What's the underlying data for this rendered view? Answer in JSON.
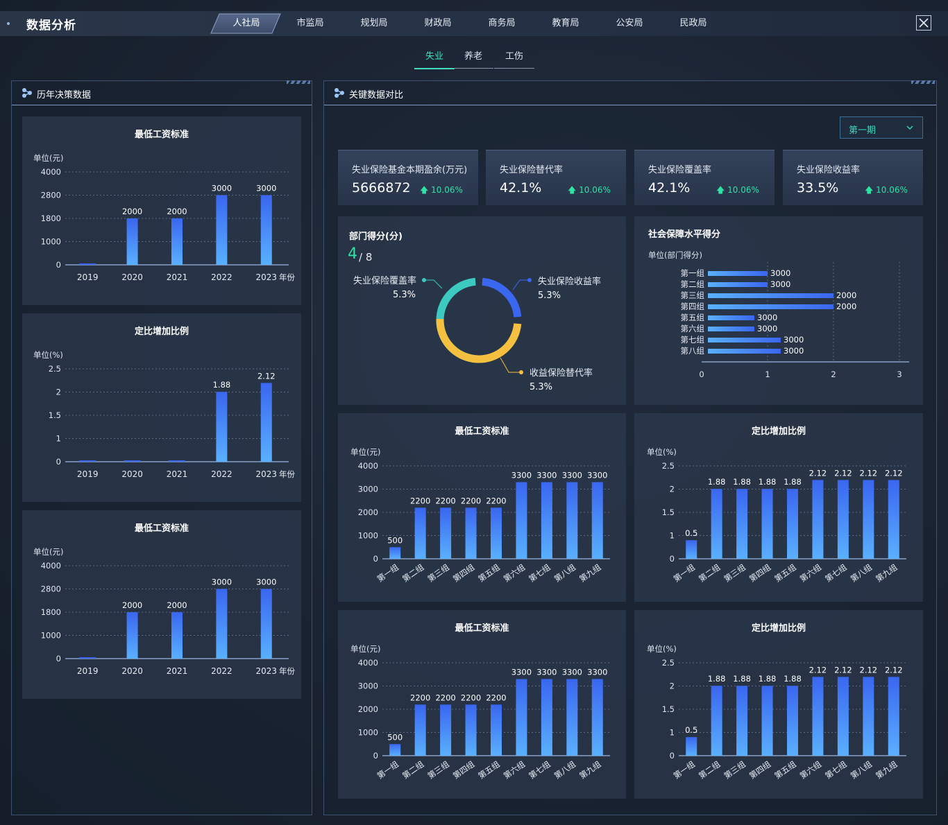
{
  "app": {
    "title": "数据分析"
  },
  "nav": {
    "tabs": [
      "人社局",
      "市监局",
      "规划局",
      "财政局",
      "商务局",
      "教育局",
      "公安局",
      "民政局"
    ],
    "active": 0
  },
  "subtabs": {
    "items": [
      "失业",
      "养老",
      "工伤"
    ],
    "active": 0
  },
  "left_panel": {
    "title": "历年决策数据"
  },
  "right_panel": {
    "title": "关键数据对比"
  },
  "period_select": {
    "value": "第一期"
  },
  "kpis": [
    {
      "label": "失业保险基金本期盈余(万元)",
      "value": "5666872",
      "change": "10.06%"
    },
    {
      "label": "失业保险替代率",
      "value": "42.1%",
      "change": "10.06%"
    },
    {
      "label": "失业保险覆盖率",
      "value": "42.1%",
      "change": "10.06%"
    },
    {
      "label": "失业保险收益率",
      "value": "33.5%",
      "change": "10.06%"
    }
  ],
  "dept_score": {
    "title": "部门得分(分)",
    "score": "4",
    "total": "/ 8"
  },
  "colors": {
    "accent": "#37d9bf",
    "up": "#2fe3a6",
    "bar_top": "#3a66f0",
    "bar_bottom": "#5ab0ff",
    "donut_teal": "#3cc9c0",
    "donut_blue": "#3a66f0",
    "donut_yellow": "#f5c040"
  },
  "chart_data": [
    {
      "type": "bar",
      "title": "最低工资标准",
      "ylabel": "单位(元)",
      "xlabel": "年份",
      "categories": [
        "2019",
        "2020",
        "2021",
        "2022",
        "2023"
      ],
      "values": [
        0,
        2000,
        2000,
        3000,
        3000
      ],
      "yticks": [
        "0",
        "1000",
        "1800",
        "2800",
        "4000"
      ],
      "ylim": [
        0,
        4000
      ]
    },
    {
      "type": "bar",
      "title": "定比增加比例",
      "ylabel": "单位(%)",
      "xlabel": "年份",
      "categories": [
        "2019",
        "2020",
        "2021",
        "2022",
        "2023"
      ],
      "values": [
        0,
        0,
        0,
        1.88,
        2.12
      ],
      "yticks": [
        "0",
        "1",
        "1.5",
        "2",
        "2.5"
      ],
      "ylim": [
        0,
        2.5
      ]
    },
    {
      "type": "bar",
      "title": "最低工资标准",
      "ylabel": "单位(元)",
      "xlabel": "年份",
      "categories": [
        "2019",
        "2020",
        "2021",
        "2022",
        "2023"
      ],
      "values": [
        0,
        2000,
        2000,
        3000,
        3000
      ],
      "yticks": [
        "0",
        "1000",
        "1800",
        "2800",
        "4000"
      ],
      "ylim": [
        0,
        4000
      ]
    },
    {
      "type": "pie",
      "title": "",
      "slices": [
        {
          "name": "失业保险覆盖率",
          "label": "5.3%",
          "value": 1
        },
        {
          "name": "失业保险收益率",
          "label": "5.3%",
          "value": 1
        },
        {
          "name": "收益保险替代率",
          "label": "5.3%",
          "value": 1
        }
      ]
    },
    {
      "type": "bar",
      "orientation": "horizontal",
      "title": "社会保障水平得分",
      "ylabel": "单位(部门得分)",
      "categories": [
        "第一组",
        "第二组",
        "第三组",
        "第四组",
        "第五组",
        "第六组",
        "第七组",
        "第八组"
      ],
      "values": [
        1,
        1,
        2,
        2,
        0.8,
        0.8,
        1.2,
        1.2
      ],
      "labels": [
        "3000",
        "3000",
        "2000",
        "2000",
        "3000",
        "3000",
        "3000",
        "3000"
      ],
      "xticks": [
        "0",
        "1",
        "2",
        "3"
      ],
      "xlim": [
        0,
        3
      ]
    },
    {
      "type": "bar",
      "title": "最低工资标准",
      "ylabel": "单位(元)",
      "categories": [
        "第一组",
        "第二组",
        "第三组",
        "第四组",
        "第五组",
        "第六组",
        "第七组",
        "第八组",
        "第九组"
      ],
      "values": [
        500,
        2200,
        2200,
        2200,
        2200,
        3300,
        3300,
        3300,
        3300
      ],
      "yticks": [
        "0",
        "1000",
        "2000",
        "3000",
        "4000"
      ],
      "ylim": [
        0,
        4000
      ]
    },
    {
      "type": "bar",
      "title": "定比增加比例",
      "ylabel": "单位(%)",
      "categories": [
        "第一组",
        "第二组",
        "第三组",
        "第四组",
        "第五组",
        "第六组",
        "第七组",
        "第八组",
        "第九组"
      ],
      "values": [
        0.5,
        1.88,
        1.88,
        1.88,
        1.88,
        2.12,
        2.12,
        2.12,
        2.12
      ],
      "yticks": [
        "0",
        "1",
        "1.5",
        "2",
        "2.5"
      ],
      "ylim": [
        0,
        2.5
      ]
    },
    {
      "type": "bar",
      "title": "最低工资标准",
      "ylabel": "单位(元)",
      "categories": [
        "第一组",
        "第二组",
        "第三组",
        "第四组",
        "第五组",
        "第六组",
        "第七组",
        "第八组",
        "第九组"
      ],
      "values": [
        500,
        2200,
        2200,
        2200,
        2200,
        3300,
        3300,
        3300,
        3300
      ],
      "yticks": [
        "0",
        "1000",
        "2000",
        "3000",
        "4000"
      ],
      "ylim": [
        0,
        4000
      ]
    },
    {
      "type": "bar",
      "title": "定比增加比例",
      "ylabel": "单位(%)",
      "categories": [
        "第一组",
        "第二组",
        "第三组",
        "第四组",
        "第五组",
        "第六组",
        "第七组",
        "第八组",
        "第九组"
      ],
      "values": [
        0.5,
        1.88,
        1.88,
        1.88,
        1.88,
        2.12,
        2.12,
        2.12,
        2.12
      ],
      "yticks": [
        "0",
        "1",
        "1.5",
        "2",
        "2.5"
      ],
      "ylim": [
        0,
        2.5
      ]
    }
  ]
}
